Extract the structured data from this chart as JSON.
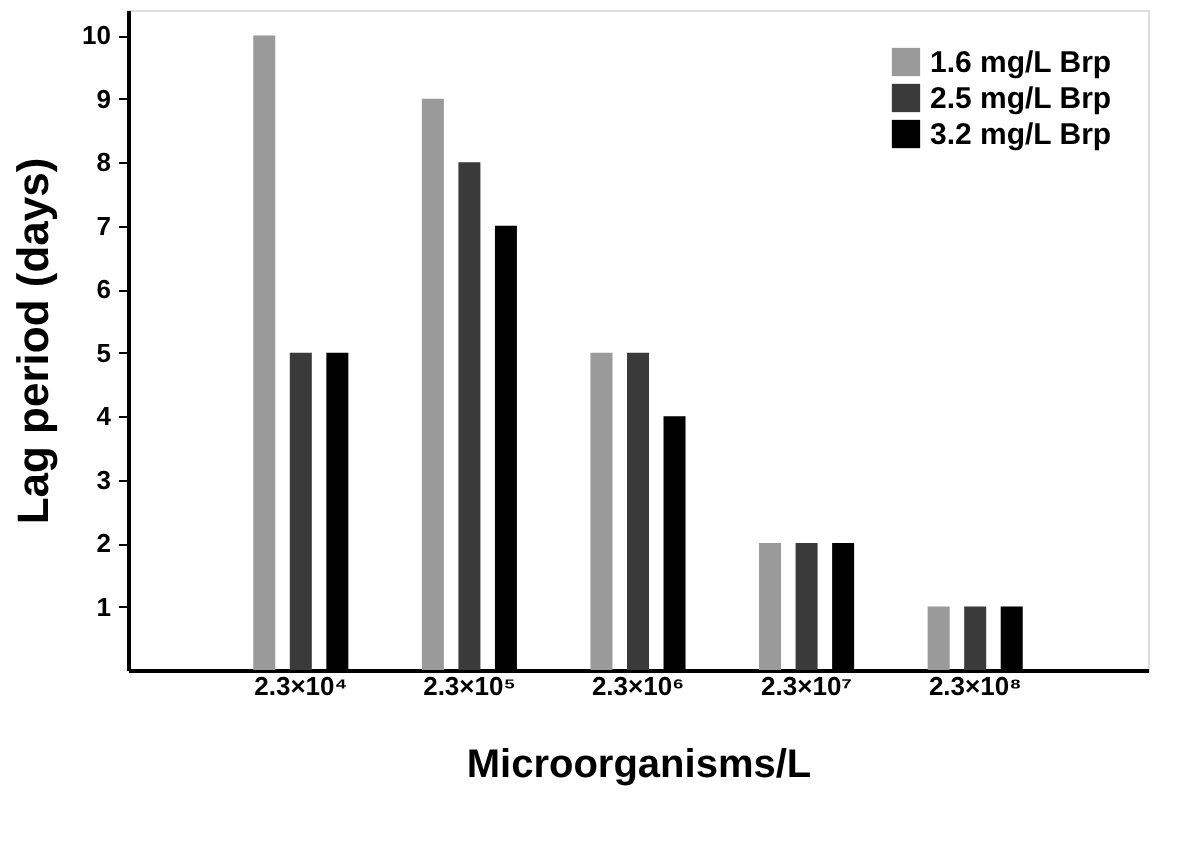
{
  "chart_data": {
    "type": "bar",
    "xlabel": "Microorganisms/L",
    "ylabel": "Lag period (days)",
    "categories": [
      "2.3×10⁴",
      "2.3×10⁵",
      "2.3×10⁶",
      "2.3×10⁷",
      "2.3×10⁸"
    ],
    "series": [
      {
        "name": "1.6 mg/L Brp",
        "color": "#9a9a9a",
        "values": [
          10,
          9,
          5,
          2,
          1
        ]
      },
      {
        "name": "2.5 mg/L Brp",
        "color": "#3a3a3a",
        "values": [
          5,
          8,
          5,
          2,
          1
        ]
      },
      {
        "name": "3.2 mg/L Brp",
        "color": "#000000",
        "values": [
          5,
          7,
          4,
          2,
          1
        ]
      }
    ],
    "ylim": [
      0,
      10.4
    ],
    "yticks": [
      1,
      2,
      3,
      4,
      5,
      6,
      7,
      8,
      9,
      10
    ],
    "grid": false,
    "legend": "top right"
  }
}
